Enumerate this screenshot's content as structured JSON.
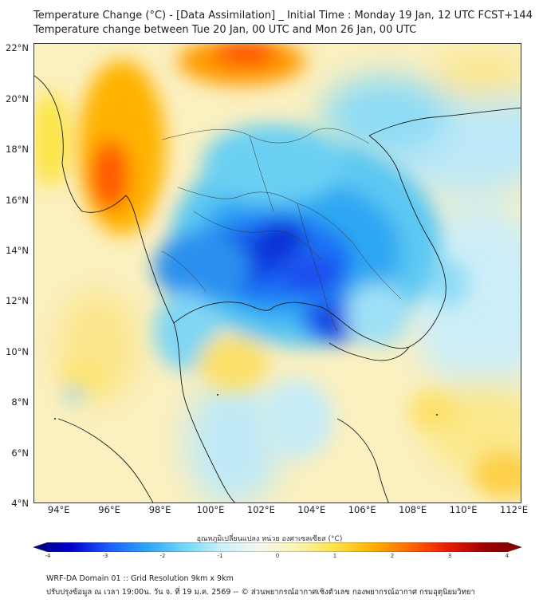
{
  "title_line1": "Temperature Change (°C) - [Data Assimilation] _ Initial Time : Monday 19 Jan, 12 UTC FCST+144",
  "title_line2": "Temperature change between Tue 20 Jan, 00 UTC and Mon 26 Jan, 00 UTC",
  "map": {
    "lat_labels": [
      "22°N",
      "20°N",
      "18°N",
      "16°N",
      "14°N",
      "12°N",
      "10°N",
      "8°N",
      "6°N",
      "4°N"
    ],
    "lon_labels": [
      "94°E",
      "96°E",
      "98°E",
      "100°E",
      "102°E",
      "104°E",
      "106°E",
      "108°E",
      "110°E",
      "112°E"
    ],
    "lat_range": [
      4,
      22.2
    ],
    "lon_range": [
      93,
      112.3
    ]
  },
  "colorbar": {
    "title": "อุณหภูมิเปลี่ยนแปลง หน่วย องศาเซลเซียส (°C)",
    "ticks": [
      "-4",
      "-3",
      "-2",
      "-1",
      "0",
      "1",
      "2",
      "3",
      "4"
    ],
    "range": [
      -4,
      4
    ],
    "colors": [
      "#00007f",
      "#0000cc",
      "#1e5aff",
      "#2ca4f5",
      "#6fd6f7",
      "#c9f1fb",
      "#f5f7f2",
      "#fbf3b0",
      "#fde34a",
      "#ffb300",
      "#ff6a00",
      "#ee1c00",
      "#a00000",
      "#7f0000"
    ]
  },
  "footer_line1": "WRF-DA Domain 01 :: Grid Resolution 9km x 9km",
  "footer_line2": "ปรับปรุงข้อมูล ณ เวลา 19:00น. วัน จ. ที่ 19 ม.ค. 2569 -- © ส่วนพยากรณ์อากาศเชิงตัวเลข กองพยากรณ์อากาศ กรมอุตุนิยมวิทยา"
}
